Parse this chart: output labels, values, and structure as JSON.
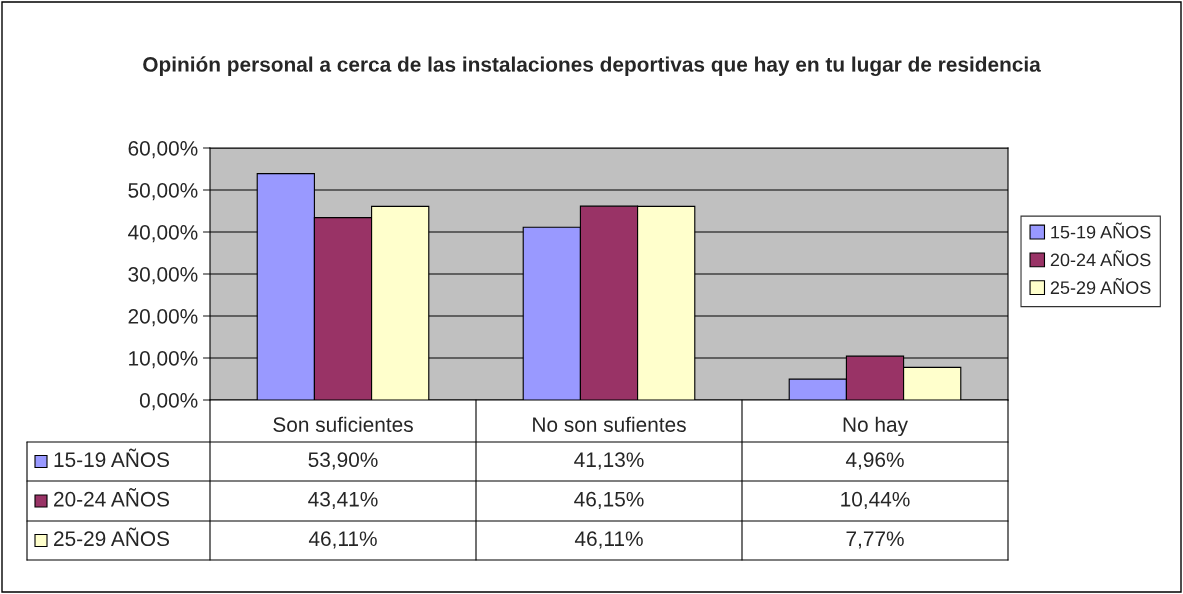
{
  "chart_data": {
    "type": "bar",
    "title": "Opinión personal a cerca de las instalaciones deportivas que hay en tu lugar de residencia",
    "categories": [
      "Son suficientes",
      "No son sufientes",
      "No hay"
    ],
    "series": [
      {
        "name": "15-19 AÑOS",
        "color": "#9999ff",
        "values": [
          53.9,
          41.13,
          4.96
        ],
        "value_labels": [
          "53,90%",
          "41,13%",
          "4,96%"
        ]
      },
      {
        "name": "20-24 AÑOS",
        "color": "#993366",
        "values": [
          43.41,
          46.15,
          10.44
        ],
        "value_labels": [
          "43,41%",
          "46,15%",
          "10,44%"
        ]
      },
      {
        "name": "25-29 AÑOS",
        "color": "#ffffcc",
        "values": [
          46.11,
          46.11,
          7.77
        ],
        "value_labels": [
          "46,11%",
          "46,11%",
          "7,77%"
        ]
      }
    ],
    "ylim": [
      0,
      60
    ],
    "yticks": [
      {
        "value": 0,
        "label": "0,00%"
      },
      {
        "value": 10,
        "label": "10,00%"
      },
      {
        "value": 20,
        "label": "20,00%"
      },
      {
        "value": 30,
        "label": "30,00%"
      },
      {
        "value": 40,
        "label": "40,00%"
      },
      {
        "value": 50,
        "label": "50,00%"
      },
      {
        "value": 60,
        "label": "60,00%"
      }
    ],
    "grid": "y",
    "legend": "right"
  }
}
